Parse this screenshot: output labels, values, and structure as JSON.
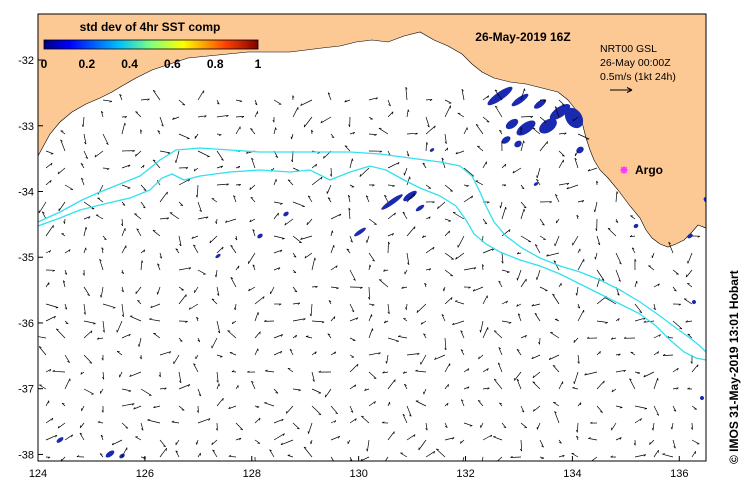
{
  "map": {
    "date_title": "26-May-2019 16Z",
    "colorbar": {
      "title": "std dev of 4hr SST comp",
      "ticks": [
        "0",
        "0.2",
        "0.4",
        "0.6",
        "0.8",
        "1"
      ],
      "range": [
        0,
        1
      ],
      "colors": [
        "#00007f",
        "#0000ff",
        "#007fff",
        "#00ffff",
        "#7fff7f",
        "#ffff00",
        "#ff7f00",
        "#ff0000",
        "#7f0000"
      ]
    },
    "info_lines": [
      "NRT00 GSL",
      "26-May 00:00Z",
      "0.5m/s (1kt 24h)"
    ],
    "argo_label": "Argo",
    "copyright": "© IMOS 31-May-2019 13:01 Hobart",
    "x_ticks": [
      "124",
      "126",
      "128",
      "130",
      "132",
      "134",
      "136"
    ],
    "y_ticks": [
      "-32",
      "-33",
      "-34",
      "-35",
      "-36",
      "-37",
      "-38"
    ],
    "lon_range": [
      124,
      136.5
    ],
    "lat_range": [
      -38.1,
      -31.3
    ],
    "colors": {
      "land": "#fcc894",
      "contour": "#33e0f0",
      "sst_patch": "#1a2ab0",
      "argo": "#ff33ff",
      "vector": "#000000"
    }
  }
}
